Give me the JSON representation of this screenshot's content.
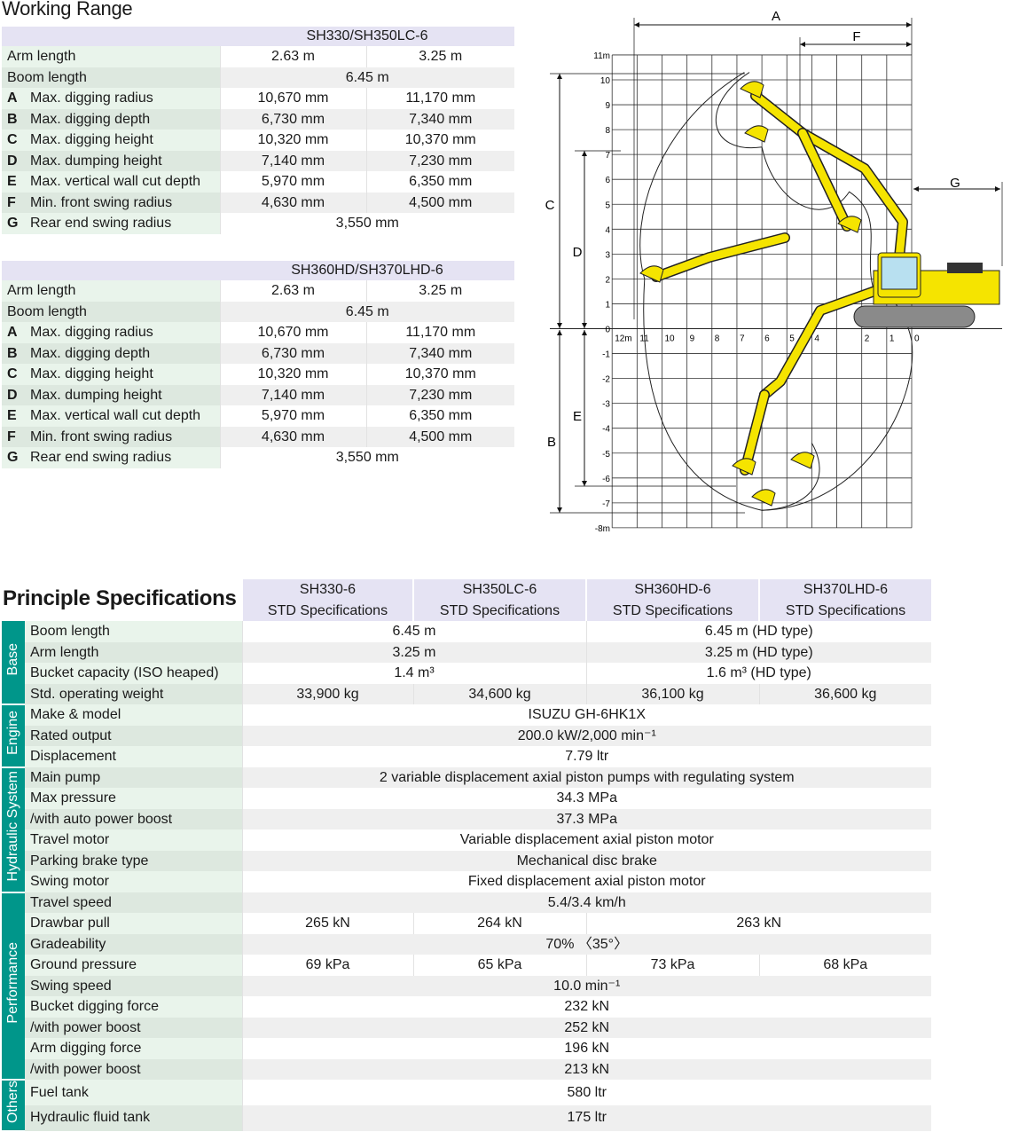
{
  "working_range": {
    "title": "Working Range",
    "tables": [
      {
        "model": "SH330/SH350LC-6",
        "rows": [
          {
            "letter": "",
            "label": "Arm length",
            "values": [
              "2.63 m",
              "3.25 m"
            ]
          },
          {
            "letter": "",
            "label": "Boom length",
            "values": [
              "6.45 m"
            ]
          },
          {
            "letter": "A",
            "label": "Max. digging radius",
            "values": [
              "10,670 mm",
              "11,170 mm"
            ]
          },
          {
            "letter": "B",
            "label": "Max. digging depth",
            "values": [
              "6,730 mm",
              "7,340 mm"
            ]
          },
          {
            "letter": "C",
            "label": "Max. digging height",
            "values": [
              "10,320 mm",
              "10,370 mm"
            ]
          },
          {
            "letter": "D",
            "label": "Max. dumping height",
            "values": [
              "7,140 mm",
              "7,230 mm"
            ]
          },
          {
            "letter": "E",
            "label": "Max. vertical wall cut depth",
            "values": [
              "5,970 mm",
              "6,350 mm"
            ]
          },
          {
            "letter": "F",
            "label": "Min. front swing radius",
            "values": [
              "4,630 mm",
              "4,500 mm"
            ]
          },
          {
            "letter": "G",
            "label": "Rear end swing radius",
            "values": [
              "3,550 mm"
            ]
          }
        ]
      },
      {
        "model": "SH360HD/SH370LHD-6",
        "rows": [
          {
            "letter": "",
            "label": "Arm length",
            "values": [
              "2.63 m",
              "3.25 m"
            ]
          },
          {
            "letter": "",
            "label": "Boom length",
            "values": [
              "6.45 m"
            ]
          },
          {
            "letter": "A",
            "label": "Max. digging radius",
            "values": [
              "10,670 mm",
              "11,170 mm"
            ]
          },
          {
            "letter": "B",
            "label": "Max. digging depth",
            "values": [
              "6,730 mm",
              "7,340 mm"
            ]
          },
          {
            "letter": "C",
            "label": "Max. digging height",
            "values": [
              "10,320 mm",
              "10,370 mm"
            ]
          },
          {
            "letter": "D",
            "label": "Max. dumping height",
            "values": [
              "7,140 mm",
              "7,230 mm"
            ]
          },
          {
            "letter": "E",
            "label": "Max. vertical wall cut depth",
            "values": [
              "5,970 mm",
              "6,350 mm"
            ]
          },
          {
            "letter": "F",
            "label": "Min. front swing radius",
            "values": [
              "4,630 mm",
              "4,500 mm"
            ]
          },
          {
            "letter": "G",
            "label": "Rear end swing radius",
            "values": [
              "3,550 mm"
            ]
          }
        ]
      }
    ]
  },
  "diagram": {
    "dimension_labels": {
      "A": "A",
      "B": "B",
      "C": "C",
      "D": "D",
      "E": "E",
      "F": "F",
      "G": "G"
    },
    "y_ticks": [
      "11m",
      "10",
      "9",
      "8",
      "7",
      "6",
      "5",
      "4",
      "3",
      "2",
      "1",
      "0",
      "-1",
      "-2",
      "-3",
      "-4",
      "-5",
      "-6",
      "-7",
      "-8m"
    ],
    "x_ticks": [
      "12m",
      "11",
      "10",
      "9",
      "8",
      "7",
      "6",
      "5",
      "4",
      "",
      "2",
      "1",
      "0"
    ],
    "colors": {
      "machine": "#f5e400",
      "cab_glass": "#b8e0f0",
      "track": "#8a8a8a",
      "grid": "#333333"
    }
  },
  "specs": {
    "title": "Principle Specifications",
    "columns": [
      {
        "model": "SH330-6",
        "sub": "STD Specifications"
      },
      {
        "model": "SH350LC-6",
        "sub": "STD Specifications"
      },
      {
        "model": "SH360HD-6",
        "sub": "STD Specifications"
      },
      {
        "model": "SH370LHD-6",
        "sub": "STD Specifications"
      }
    ],
    "groups": [
      {
        "name": "Base",
        "rows": [
          {
            "label": "Boom length",
            "cells": [
              {
                "text": "6.45 m",
                "span": 2
              },
              {
                "text": "6.45 m (HD type)",
                "span": 2
              }
            ]
          },
          {
            "label": "Arm length",
            "cells": [
              {
                "text": "3.25 m",
                "span": 2
              },
              {
                "text": "3.25 m (HD type)",
                "span": 2
              }
            ]
          },
          {
            "label": "Bucket capacity (ISO heaped)",
            "cells": [
              {
                "text": "1.4 m³",
                "span": 2
              },
              {
                "text": "1.6 m³ (HD type)",
                "span": 2
              }
            ]
          },
          {
            "label": "Std. operating weight",
            "cells": [
              {
                "text": "33,900 kg",
                "span": 1
              },
              {
                "text": "34,600 kg",
                "span": 1
              },
              {
                "text": "36,100 kg",
                "span": 1
              },
              {
                "text": "36,600 kg",
                "span": 1
              }
            ]
          }
        ]
      },
      {
        "name": "Engine",
        "rows": [
          {
            "label": "Make & model",
            "cells": [
              {
                "text": "ISUZU GH-6HK1X",
                "span": 4
              }
            ]
          },
          {
            "label": "Rated output",
            "cells": [
              {
                "text": "200.0 kW/2,000 min⁻¹",
                "span": 4
              }
            ]
          },
          {
            "label": "Displacement",
            "cells": [
              {
                "text": "7.79 ltr",
                "span": 4
              }
            ]
          }
        ]
      },
      {
        "name": "Hydraulic System",
        "rows": [
          {
            "label": "Main pump",
            "cells": [
              {
                "text": "2 variable displacement axial piston pumps with regulating system",
                "span": 4
              }
            ]
          },
          {
            "label": "Max pressure",
            "cells": [
              {
                "text": "34.3 MPa",
                "span": 4
              }
            ]
          },
          {
            "label": "/with auto power boost",
            "cells": [
              {
                "text": "37.3 MPa",
                "span": 4
              }
            ]
          },
          {
            "label": "Travel motor",
            "cells": [
              {
                "text": "Variable displacement axial piston motor",
                "span": 4
              }
            ]
          },
          {
            "label": "Parking brake type",
            "cells": [
              {
                "text": "Mechanical disc brake",
                "span": 4
              }
            ]
          },
          {
            "label": "Swing motor",
            "cells": [
              {
                "text": "Fixed displacement axial piston motor",
                "span": 4
              }
            ]
          }
        ]
      },
      {
        "name": "Performance",
        "rows": [
          {
            "label": "Travel speed",
            "cells": [
              {
                "text": "5.4/3.4 km/h",
                "span": 4
              }
            ]
          },
          {
            "label": "Drawbar pull",
            "cells": [
              {
                "text": "265 kN",
                "span": 1
              },
              {
                "text": "264 kN",
                "span": 1
              },
              {
                "text": "263 kN",
                "span": 2
              }
            ]
          },
          {
            "label": "Gradeability",
            "cells": [
              {
                "text": "70% 〈35°〉",
                "span": 4
              }
            ]
          },
          {
            "label": "Ground pressure",
            "cells": [
              {
                "text": "69 kPa",
                "span": 1
              },
              {
                "text": "65 kPa",
                "span": 1
              },
              {
                "text": "73 kPa",
                "span": 1
              },
              {
                "text": "68 kPa",
                "span": 1
              }
            ]
          },
          {
            "label": "Swing speed",
            "cells": [
              {
                "text": "10.0 min⁻¹",
                "span": 4
              }
            ]
          },
          {
            "label": "Bucket digging force",
            "cells": [
              {
                "text": "232 kN",
                "span": 4
              }
            ]
          },
          {
            "label": "/with power boost",
            "cells": [
              {
                "text": "252 kN",
                "span": 4
              }
            ]
          },
          {
            "label": "Arm digging force",
            "cells": [
              {
                "text": "196 kN",
                "span": 4
              }
            ]
          },
          {
            "label": "/with power boost",
            "cells": [
              {
                "text": "213 kN",
                "span": 4
              }
            ]
          }
        ]
      },
      {
        "name": "Others",
        "rows": [
          {
            "label": "Fuel tank",
            "cells": [
              {
                "text": "580 ltr",
                "span": 4
              }
            ]
          },
          {
            "label": "Hydraulic fluid tank",
            "cells": [
              {
                "text": "175 ltr",
                "span": 4
              }
            ]
          }
        ]
      }
    ]
  }
}
